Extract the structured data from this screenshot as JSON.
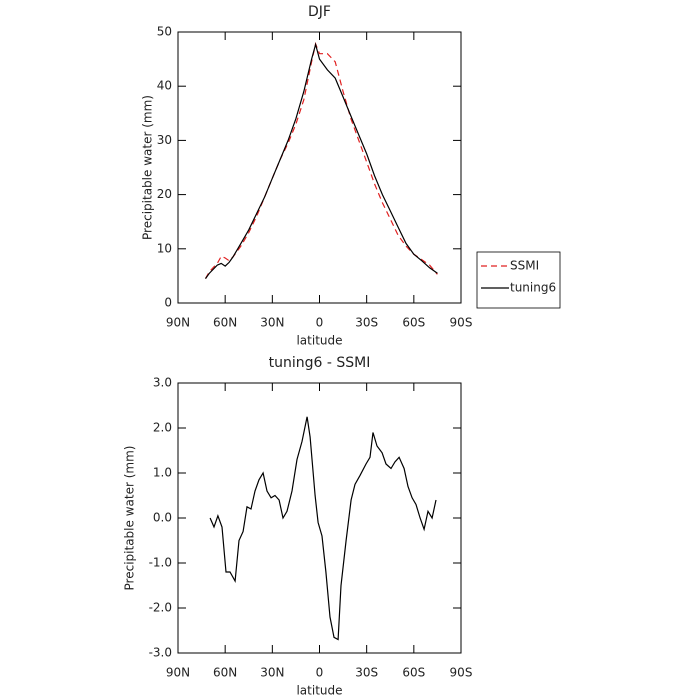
{
  "chart_data": [
    {
      "type": "line",
      "title": "DJF",
      "xlabel": "latitude",
      "ylabel": "Precipitable water (mm)",
      "x": [
        72.5,
        70,
        65,
        62.5,
        60,
        57.5,
        55,
        50,
        45,
        40,
        35,
        30,
        25,
        20,
        15,
        10,
        5,
        2.5,
        0,
        -5,
        -10,
        -15,
        -20,
        -25,
        -30,
        -35,
        -40,
        -45,
        -50,
        -55,
        -60,
        -65,
        -70,
        -75
      ],
      "series": [
        {
          "name": "SSMI",
          "color": "#e02020",
          "dash": true,
          "values": [
            4.5,
            5.8,
            7.3,
            8.6,
            8.3,
            7.8,
            8.5,
            10.5,
            13,
            16,
            19.5,
            23,
            26.5,
            29.5,
            33,
            37.5,
            44.5,
            47.8,
            46,
            46,
            44.5,
            39,
            34,
            30,
            26,
            22,
            18.5,
            15.5,
            12.5,
            10.5,
            9,
            8,
            7,
            5.3
          ]
        },
        {
          "name": "tuning6",
          "color": "#000000",
          "dash": false,
          "values": [
            4.5,
            5.5,
            7,
            7.3,
            6.8,
            7.5,
            8.5,
            11,
            13.5,
            16.5,
            19.5,
            23,
            26.5,
            30,
            34,
            39,
            45,
            47.7,
            45,
            43,
            41.5,
            38,
            34.5,
            31,
            27.5,
            23.5,
            20,
            17,
            14,
            11,
            9,
            7.8,
            6.5,
            5.5
          ]
        }
      ],
      "xlim": [
        90,
        -90
      ],
      "xticks": [
        {
          "value": 90,
          "label": "90N"
        },
        {
          "value": 60,
          "label": "60N"
        },
        {
          "value": 30,
          "label": "30N"
        },
        0,
        {
          "value": -30,
          "label": "30S"
        },
        {
          "value": -60,
          "label": "60S"
        },
        {
          "value": -90,
          "label": "90S"
        }
      ],
      "ylim": [
        0,
        50
      ],
      "yticks": [
        0,
        10,
        20,
        30,
        40,
        50
      ],
      "legend": "right"
    },
    {
      "type": "line",
      "title": "tuning6 - SSMI",
      "xlabel": "latitude",
      "ylabel": "Precipitable water (mm)",
      "x": [
        69.6,
        67.1,
        64.6,
        62.0,
        59.5,
        56.9,
        53.7,
        51.2,
        48.6,
        46.1,
        43.6,
        41.0,
        38.5,
        35.9,
        33.4,
        30.8,
        28.3,
        25.7,
        23.2,
        20.7,
        17.5,
        14.3,
        11.1,
        7.9,
        6.0,
        2.8,
        0.9,
        -1.6,
        -4.1,
        -6.7,
        -9.2,
        -11.8,
        -13.7,
        -16.9,
        -20.1,
        -22.6,
        -25.8,
        -29.6,
        -32.1,
        -34.0,
        -36.6,
        -39.8,
        -42.3,
        -45.5,
        -48.0,
        -50.6,
        -53.8,
        -56.3,
        -58.9,
        -61.4,
        -64.0,
        -66.5,
        -69.0,
        -71.6,
        -74.1
      ],
      "series": [
        {
          "name": "tuning6 - SSMI",
          "color": "#000000",
          "dash": false,
          "values": [
            0,
            -0.2,
            0.05,
            -0.2,
            -1.2,
            -1.2,
            -1.4,
            -0.5,
            -0.3,
            0.25,
            0.2,
            0.6,
            0.85,
            1.0,
            0.6,
            0.45,
            0.5,
            0.4,
            0,
            0.15,
            0.6,
            1.3,
            1.7,
            2.25,
            1.8,
            0.5,
            -0.1,
            -0.4,
            -1.2,
            -2.2,
            -2.65,
            -2.7,
            -1.5,
            -0.5,
            0.4,
            0.75,
            0.95,
            1.2,
            1.35,
            1.9,
            1.6,
            1.45,
            1.2,
            1.1,
            1.25,
            1.35,
            1.1,
            0.7,
            0.45,
            0.3,
            0,
            -0.25,
            0.15,
            0,
            0.4
          ]
        }
      ],
      "xlim": [
        90,
        -90
      ],
      "xticks": [
        {
          "value": 90,
          "label": "90N"
        },
        {
          "value": 60,
          "label": "60N"
        },
        {
          "value": 30,
          "label": "30N"
        },
        0,
        {
          "value": -30,
          "label": "30S"
        },
        {
          "value": -60,
          "label": "60S"
        },
        {
          "value": -90,
          "label": "90S"
        }
      ],
      "ylim": [
        -3,
        3
      ],
      "yticks": [
        {
          "value": -3,
          "label": "-3.0"
        },
        {
          "value": -2,
          "label": "-2.0"
        },
        {
          "value": -1,
          "label": "-1.0"
        },
        {
          "value": 0,
          "label": "0.0"
        },
        {
          "value": 1,
          "label": "1.0"
        },
        {
          "value": 2,
          "label": "2.0"
        },
        {
          "value": 3,
          "label": "3.0"
        }
      ]
    }
  ]
}
